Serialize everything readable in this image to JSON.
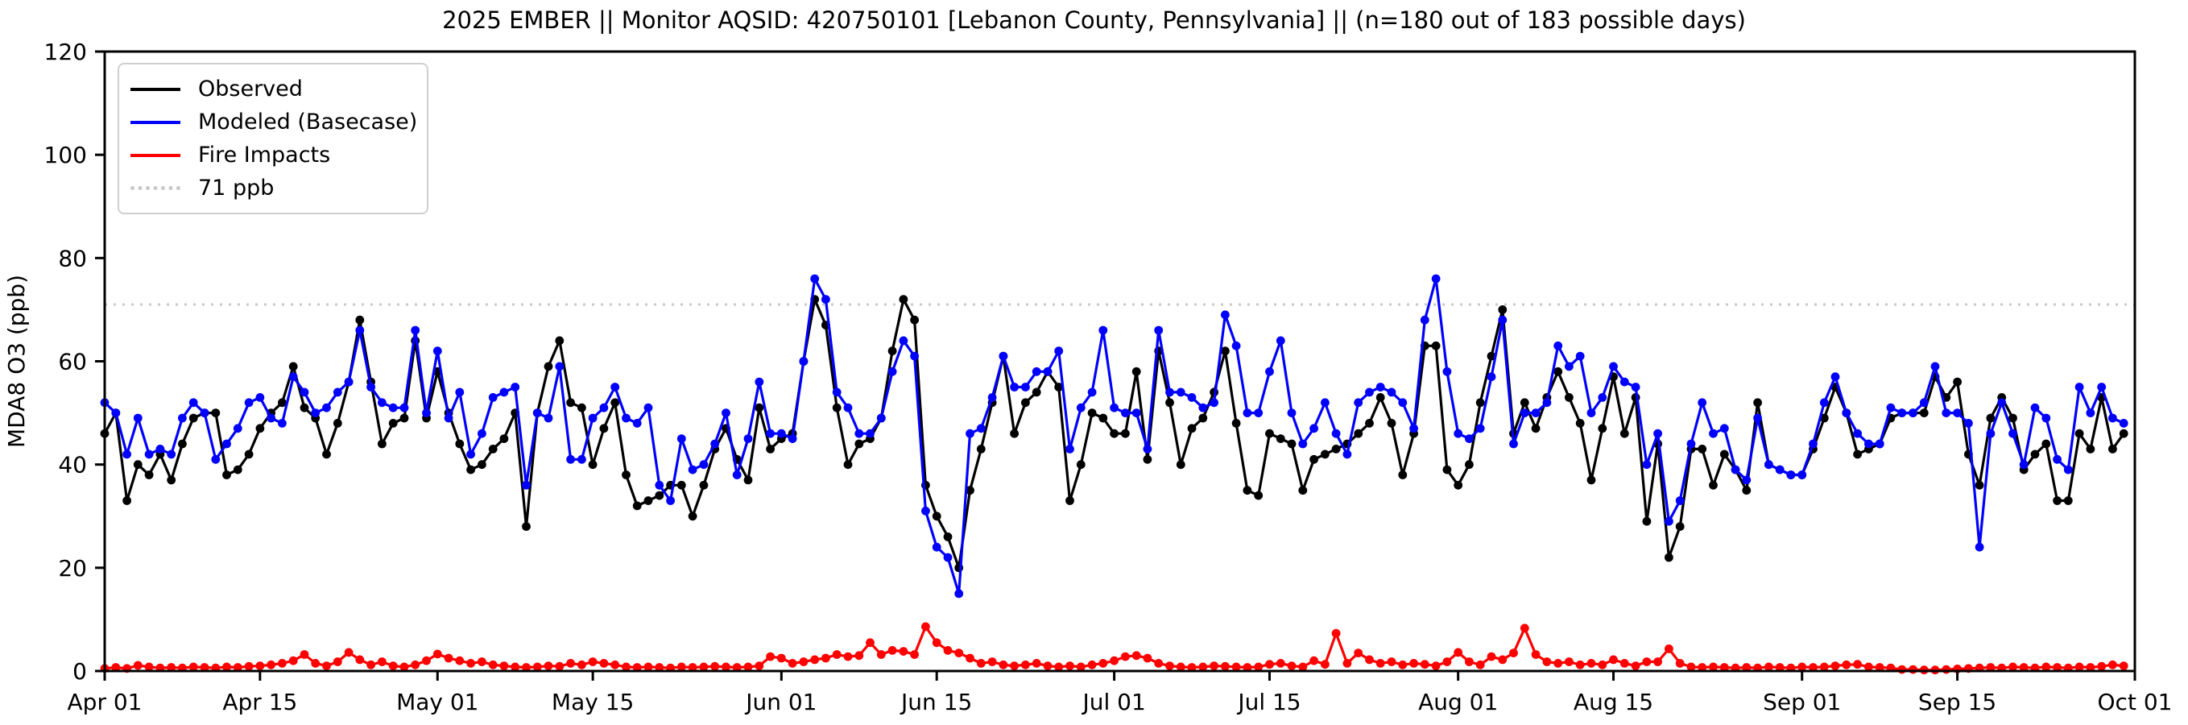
{
  "title": "2025 EMBER || Monitor AQSID: 420750101 [Lebanon County, Pennsylvania] || (n=180 out of 183 possible days)",
  "chart_data": {
    "type": "line",
    "title": "2025 EMBER || Monitor AQSID: 420750101 [Lebanon County, Pennsylvania] || (n=180 out of 183 possible days)",
    "xlabel": "",
    "ylabel": "MDA8 O3 (ppb)",
    "ylim": [
      0,
      120
    ],
    "yticks": [
      0,
      20,
      40,
      60,
      80,
      100,
      120
    ],
    "grid": false,
    "legend_position": "upper-left",
    "x_unit": "day index from Apr 01",
    "x_range_days": [
      0,
      183
    ],
    "xticks": [
      {
        "label": "Apr 01",
        "day": 0
      },
      {
        "label": "Apr 15",
        "day": 14
      },
      {
        "label": "May 01",
        "day": 30
      },
      {
        "label": "May 15",
        "day": 44
      },
      {
        "label": "Jun 01",
        "day": 61
      },
      {
        "label": "Jun 15",
        "day": 75
      },
      {
        "label": "Jul 01",
        "day": 91
      },
      {
        "label": "Jul 15",
        "day": 105
      },
      {
        "label": "Aug 01",
        "day": 122
      },
      {
        "label": "Aug 15",
        "day": 136
      },
      {
        "label": "Sep 01",
        "day": 153
      },
      {
        "label": "Sep 15",
        "day": 167
      },
      {
        "label": "Oct 01",
        "day": 183
      }
    ],
    "reference_line": {
      "label": "71 ppb",
      "value": 71,
      "color": "#c9c9c9",
      "style": "dotted"
    },
    "series": [
      {
        "name": "Observed",
        "color": "#000000",
        "values": [
          46,
          50,
          33,
          40,
          38,
          42,
          37,
          44,
          49,
          50,
          50,
          38,
          39,
          42,
          47,
          50,
          52,
          59,
          51,
          49,
          42,
          48,
          56,
          68,
          56,
          44,
          48,
          49,
          64,
          49,
          58,
          50,
          44,
          39,
          40,
          43,
          45,
          50,
          28,
          50,
          59,
          64,
          52,
          51,
          40,
          47,
          52,
          38,
          32,
          33,
          34,
          36,
          36,
          30,
          36,
          43,
          47,
          41,
          37,
          51,
          43,
          45,
          46,
          60,
          72,
          67,
          51,
          40,
          44,
          45,
          49,
          62,
          72,
          68,
          36,
          30,
          26,
          20,
          35,
          43,
          52,
          61,
          46,
          52,
          54,
          58,
          55,
          33,
          40,
          50,
          49,
          46,
          46,
          58,
          41,
          62,
          52,
          40,
          47,
          49,
          54,
          62,
          48,
          35,
          34,
          46,
          45,
          44,
          35,
          41,
          42,
          43,
          44,
          46,
          48,
          53,
          48,
          38,
          46,
          63,
          63,
          39,
          36,
          40,
          52,
          61,
          70,
          46,
          52,
          47,
          53,
          58,
          53,
          48,
          37,
          47,
          57,
          46,
          53,
          29,
          44,
          22,
          28,
          43,
          43,
          36,
          42,
          39,
          35,
          52,
          40,
          39,
          38,
          38,
          43,
          49,
          55,
          50,
          42,
          43,
          44,
          49,
          50,
          50,
          50,
          57,
          53,
          56,
          42,
          36,
          49,
          53,
          49,
          39,
          42,
          44,
          33,
          33,
          46,
          43,
          53,
          43,
          46
        ]
      },
      {
        "name": "Modeled (Basecase)",
        "color": "#0000ff",
        "values": [
          52,
          50,
          42,
          49,
          42,
          43,
          42,
          49,
          52,
          50,
          41,
          44,
          47,
          52,
          53,
          49,
          48,
          57,
          54,
          50,
          51,
          54,
          56,
          66,
          55,
          52,
          51,
          51,
          66,
          50,
          62,
          49,
          54,
          42,
          46,
          53,
          54,
          55,
          36,
          50,
          49,
          59,
          41,
          41,
          49,
          51,
          55,
          49,
          48,
          51,
          36,
          33,
          45,
          39,
          40,
          44,
          50,
          38,
          45,
          56,
          46,
          46,
          45,
          60,
          76,
          72,
          54,
          51,
          46,
          46,
          49,
          58,
          64,
          61,
          31,
          24,
          22,
          15,
          46,
          47,
          53,
          61,
          55,
          55,
          58,
          58,
          62,
          43,
          51,
          54,
          66,
          51,
          50,
          50,
          43,
          66,
          54,
          54,
          53,
          51,
          52,
          69,
          63,
          50,
          50,
          58,
          64,
          50,
          44,
          47,
          52,
          46,
          42,
          52,
          54,
          55,
          54,
          52,
          47,
          68,
          76,
          58,
          46,
          45,
          47,
          57,
          68,
          44,
          50,
          50,
          52,
          63,
          59,
          61,
          50,
          53,
          59,
          56,
          55,
          40,
          46,
          29,
          33,
          44,
          52,
          46,
          47,
          39,
          37,
          49,
          40,
          39,
          38,
          38,
          44,
          52,
          57,
          50,
          46,
          44,
          44,
          51,
          50,
          50,
          52,
          59,
          50,
          50,
          48,
          24,
          46,
          52,
          46,
          40,
          51,
          49,
          41,
          39,
          55,
          50,
          55,
          49,
          48
        ]
      },
      {
        "name": "Fire Impacts",
        "color": "#ff0000",
        "values": [
          0.5,
          0.7,
          0.5,
          1.1,
          0.8,
          0.6,
          0.7,
          0.6,
          0.8,
          0.7,
          0.6,
          0.8,
          0.7,
          0.9,
          1.0,
          1.2,
          1.5,
          2.0,
          3.2,
          1.5,
          1.0,
          1.8,
          3.6,
          2.2,
          1.2,
          1.8,
          1.0,
          0.8,
          1.2,
          2.0,
          3.3,
          2.5,
          2.0,
          1.5,
          1.8,
          1.2,
          1.0,
          0.8,
          0.7,
          0.8,
          1.0,
          0.9,
          1.5,
          1.2,
          1.8,
          1.5,
          1.2,
          0.8,
          0.7,
          0.8,
          0.7,
          0.6,
          0.8,
          0.7,
          0.8,
          0.9,
          0.8,
          0.7,
          0.8,
          1.0,
          2.8,
          2.5,
          1.5,
          1.8,
          2.2,
          2.5,
          3.2,
          2.8,
          3.0,
          5.5,
          3.2,
          4.0,
          3.8,
          3.2,
          8.6,
          5.5,
          4.0,
          3.5,
          2.5,
          1.5,
          1.8,
          1.2,
          1.0,
          1.2,
          1.5,
          1.0,
          0.8,
          1.0,
          0.8,
          1.2,
          1.5,
          2.0,
          2.8,
          3.0,
          2.5,
          1.5,
          1.0,
          0.8,
          0.7,
          0.8,
          1.0,
          0.9,
          0.8,
          0.7,
          0.8,
          1.3,
          1.5,
          1.0,
          0.8,
          2.0,
          1.3,
          7.3,
          1.5,
          3.5,
          2.2,
          1.5,
          1.8,
          1.2,
          1.5,
          1.3,
          1.0,
          1.8,
          3.6,
          1.8,
          1.2,
          2.8,
          2.2,
          3.5,
          8.3,
          3.2,
          1.8,
          1.5,
          1.8,
          1.2,
          1.5,
          1.2,
          2.2,
          1.5,
          1.0,
          1.8,
          1.8,
          4.3,
          1.5,
          0.8,
          0.7,
          0.8,
          0.7,
          0.6,
          0.7,
          0.6,
          0.8,
          0.7,
          0.6,
          0.8,
          0.7,
          0.8,
          1.0,
          1.2,
          1.3,
          0.8,
          0.7,
          0.6,
          0.3,
          0.3,
          0.2,
          0.2,
          0.3,
          0.4,
          0.5,
          0.6,
          0.7,
          0.6,
          0.8,
          0.7,
          0.6,
          0.8,
          0.7,
          0.6,
          0.8,
          0.7,
          0.9,
          1.2,
          1.0
        ]
      }
    ]
  }
}
